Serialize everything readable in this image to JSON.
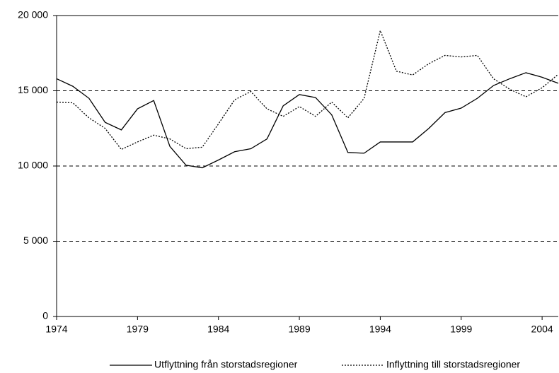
{
  "chart_data": {
    "type": "line",
    "x": [
      1974,
      1975,
      1976,
      1977,
      1978,
      1979,
      1980,
      1981,
      1982,
      1983,
      1984,
      1985,
      1986,
      1987,
      1988,
      1989,
      1990,
      1991,
      1992,
      1993,
      1994,
      1995,
      1996,
      1997,
      1998,
      1999,
      2000,
      2001,
      2002,
      2003,
      2004,
      2005
    ],
    "series": [
      {
        "name": "Utflyttning från storstadsregioner",
        "color": "#000000",
        "dash": "solid",
        "values": [
          15800,
          15300,
          14500,
          12900,
          12400,
          13800,
          14350,
          11300,
          10050,
          9880,
          10400,
          10950,
          11150,
          11800,
          14000,
          14750,
          14550,
          13400,
          10900,
          10850,
          11600,
          11600,
          11600,
          12500,
          13550,
          13850,
          14500,
          15350,
          15800,
          16200,
          15900,
          15500
        ]
      },
      {
        "name": "Inflyttning till storstadsregioner",
        "color": "#000000",
        "dash": "dotted",
        "values": [
          14250,
          14200,
          13200,
          12500,
          11100,
          11600,
          12050,
          11800,
          11150,
          11250,
          12800,
          14400,
          14950,
          13800,
          13300,
          13950,
          13300,
          14250,
          13200,
          14500,
          19000,
          16300,
          16050,
          16800,
          17350,
          17250,
          17350,
          15800,
          15100,
          14600,
          15200,
          16100
        ]
      }
    ],
    "xlim": [
      1974,
      2005
    ],
    "xticks": [
      1974,
      1979,
      1984,
      1989,
      1994,
      1999,
      2004
    ],
    "ylim": [
      0,
      20000
    ],
    "yticks": [
      0,
      {
        "value": 5000,
        "label": "5 000"
      },
      {
        "value": 10000,
        "label": "10 000"
      },
      {
        "value": 15000,
        "label": "15 000"
      },
      {
        "value": 20000,
        "label": "20 000"
      }
    ],
    "grid": true,
    "legend": "bottom"
  }
}
